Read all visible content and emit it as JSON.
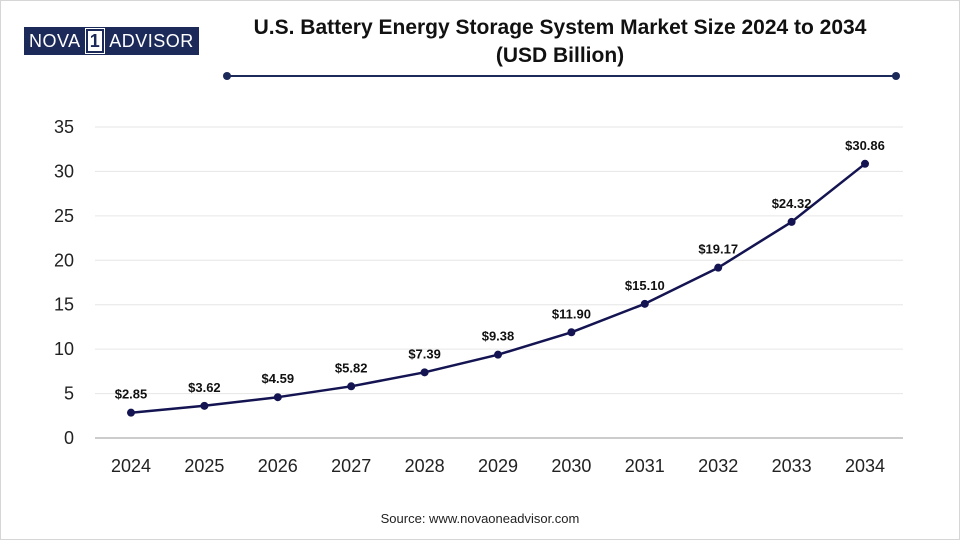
{
  "brand": {
    "part_a": "NOVA",
    "part_b": "1",
    "part_c": "ADVISOR"
  },
  "title_line1": "U.S. Battery Energy Storage System Market Size 2024 to 2034",
  "title_line2": "(USD Billion)",
  "source": "Source: www.novaoneadvisor.com",
  "colors": {
    "line": "#141452",
    "accent": "#1c2a5a",
    "grid": "#e6e6e6",
    "axis": "#999999"
  },
  "chart_data": {
    "type": "line",
    "title": "U.S. Battery Energy Storage System Market Size 2024 to 2034 (USD Billion)",
    "xlabel": "",
    "ylabel": "",
    "categories": [
      "2024",
      "2025",
      "2026",
      "2027",
      "2028",
      "2029",
      "2030",
      "2031",
      "2032",
      "2033",
      "2034"
    ],
    "series": [
      {
        "name": "Market Size (USD Billion)",
        "values": [
          2.85,
          3.62,
          4.59,
          5.82,
          7.39,
          9.38,
          11.9,
          15.1,
          19.17,
          24.32,
          30.86
        ]
      }
    ],
    "data_labels": [
      "$2.85",
      "$3.62",
      "$4.59",
      "$5.82",
      "$7.39",
      "$9.38",
      "$11.90",
      "$15.10",
      "$19.17",
      "$24.32",
      "$30.86"
    ],
    "yticks": [
      "0",
      "5",
      "10",
      "15",
      "20",
      "25",
      "30",
      "35"
    ],
    "ylim": [
      0,
      35
    ],
    "grid": true
  }
}
